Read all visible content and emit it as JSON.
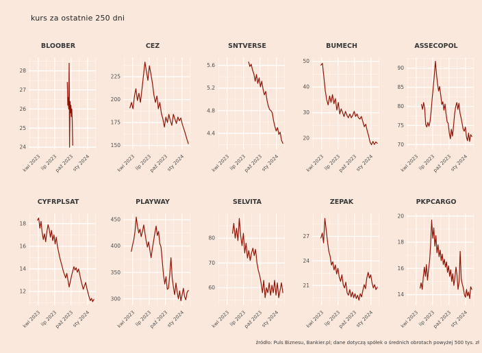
{
  "page": {
    "title": "kurs za ostatnie 250 dni",
    "footer": "źródło: Puls Biznesu, Bankier.pl; dane dotyczą spółek o średnich obrotach powyżej 500 tys. zł",
    "background_color": "#fae8dc",
    "line_color": "#8c1407",
    "grid_color": "#ffffff"
  },
  "x_axis": {
    "ticks": [
      "kwi 2023",
      "lip 2023",
      "paź 2023",
      "sty 2024"
    ],
    "fracs": [
      0.14,
      0.385,
      0.63,
      0.875
    ]
  },
  "chart_data": [
    {
      "type": "line",
      "title": "BLOOBER",
      "y_ticks": [
        28,
        27,
        26,
        25,
        24
      ],
      "ylim": [
        23.9,
        28.7
      ],
      "x_start": 0.575,
      "x_end": 0.655,
      "values": [
        27.4,
        26.2,
        26.6,
        26.0,
        28.4,
        24.0,
        26.4,
        25.8,
        26.2,
        25.6,
        26.0,
        25.4,
        24.1
      ]
    },
    {
      "type": "line",
      "title": "CEZ",
      "y_ticks": [
        225,
        200,
        175,
        150
      ],
      "ylim": [
        146,
        246
      ],
      "x_start": 0.1,
      "x_end": 0.97,
      "values": [
        191,
        197,
        190,
        204,
        212,
        199,
        207,
        197,
        211,
        226,
        241,
        231,
        221,
        237,
        228,
        218,
        205,
        197,
        204,
        190,
        197,
        185,
        179,
        170,
        181,
        175,
        184,
        177,
        172,
        184,
        179,
        174,
        181,
        177,
        180,
        173,
        168,
        163,
        157,
        152
      ]
    },
    {
      "type": "line",
      "title": "SNTVERSE",
      "y_ticks": [
        5.6,
        5.2,
        4.8,
        4.4
      ],
      "ylim": [
        4.12,
        5.74
      ],
      "x_start": 0.46,
      "x_end": 0.97,
      "values": [
        5.66,
        5.58,
        5.62,
        5.52,
        5.45,
        5.32,
        5.44,
        5.28,
        5.38,
        5.22,
        5.32,
        5.18,
        5.08,
        5.14,
        4.98,
        4.88,
        4.82,
        4.8,
        4.76,
        4.62,
        4.52,
        4.44,
        4.5,
        4.38,
        4.42,
        4.28,
        4.22
      ]
    },
    {
      "type": "line",
      "title": "BUMECH",
      "y_ticks": [
        50,
        40,
        30,
        20
      ],
      "ylim": [
        15.8,
        51.5
      ],
      "x_start": 0.13,
      "x_end": 0.97,
      "values": [
        48.5,
        49.2,
        44,
        38.5,
        35,
        33,
        36.5,
        34,
        37,
        33.5,
        35.5,
        31,
        34,
        29.5,
        31.5,
        30,
        28.5,
        30.5,
        29,
        28,
        29.5,
        28,
        29,
        30.5,
        28.5,
        29.5,
        28,
        27.5,
        28.5,
        26.5,
        24.5,
        25.5,
        23,
        21,
        18.5,
        17.5,
        18.8,
        17.6,
        18.6,
        18.1
      ]
    },
    {
      "type": "line",
      "title": "ASSECOPOL",
      "y_ticks": [
        90,
        85,
        80,
        75,
        70
      ],
      "ylim": [
        68.8,
        92.8
      ],
      "x_start": 0.22,
      "x_end": 0.97,
      "values": [
        80.5,
        79.2,
        81,
        79.5,
        75.2,
        74.6,
        75.8,
        74.8,
        76,
        78.5,
        82,
        85,
        88,
        91.8,
        88.5,
        86,
        84,
        85.2,
        83,
        80.5,
        81.2,
        79,
        80.6,
        78,
        76,
        75.5,
        73,
        71.5,
        74,
        72.2,
        75,
        78,
        80,
        81,
        79.2,
        80.8,
        78.2,
        77,
        75.5,
        74,
        73.5,
        74.6,
        72,
        71,
        73,
        70.8,
        72.6,
        72.1
      ]
    },
    {
      "type": "line",
      "title": "CYFRPLSAT",
      "y_ticks": [
        18,
        16,
        14,
        12
      ],
      "ylim": [
        10.8,
        18.9
      ],
      "x_start": 0.13,
      "x_end": 0.97,
      "values": [
        18.3,
        18.5,
        17.6,
        18.2,
        17.2,
        16.6,
        17.1,
        16.4,
        17.3,
        17.9,
        17.5,
        16.8,
        17.4,
        16.5,
        17.0,
        16.2,
        16.8,
        16.0,
        15.5,
        15.0,
        14.6,
        14.2,
        13.8,
        13.5,
        13.2,
        13.6,
        13.0,
        12.4,
        12.9,
        13.4,
        13.8,
        14.2,
        13.9,
        14.1,
        13.7,
        14.0,
        13.5,
        13.0,
        12.6,
        12.2,
        12.5,
        12.8,
        12.3,
        11.9,
        11.5,
        11.2,
        11.4,
        11.1,
        11.3
      ]
    },
    {
      "type": "line",
      "title": "PLAYWAY",
      "y_ticks": [
        450,
        400,
        350,
        300
      ],
      "ylim": [
        288,
        462
      ],
      "x_start": 0.12,
      "x_end": 0.97,
      "values": [
        390,
        402,
        412,
        428,
        455,
        438,
        425,
        432,
        418,
        428,
        440,
        425,
        410,
        398,
        408,
        392,
        378,
        395,
        410,
        425,
        438,
        420,
        428,
        405,
        398,
        372,
        345,
        328,
        342,
        318,
        320,
        345,
        378,
        340,
        322,
        308,
        330,
        312,
        300,
        315,
        296,
        308,
        320,
        304,
        298,
        312,
        316
      ]
    },
    {
      "type": "line",
      "title": "SELVITA",
      "y_ticks": [
        80,
        70,
        60
      ],
      "ylim": [
        53,
        90
      ],
      "x_start": 0.22,
      "x_end": 0.97,
      "values": [
        82,
        86,
        80,
        84,
        79,
        88,
        81,
        77,
        82,
        74,
        78,
        72,
        75,
        71,
        74,
        76,
        73,
        75.5,
        70,
        67,
        65,
        62,
        58,
        63,
        56,
        60,
        58,
        62,
        57,
        61,
        58,
        63,
        57,
        62,
        56,
        59,
        62,
        58
      ]
    },
    {
      "type": "line",
      "title": "ZEPAK",
      "y_ticks": [
        27,
        24,
        21
      ],
      "ylim": [
        18.6,
        29.8
      ],
      "x_start": 0.13,
      "x_end": 0.97,
      "values": [
        26.8,
        27.4,
        26.2,
        29.2,
        27.8,
        26.4,
        25.2,
        24.6,
        23.5,
        23.9,
        22.9,
        23.5,
        22.4,
        23.1,
        22.0,
        21.5,
        22.3,
        21.1,
        20.7,
        21.4,
        20.1,
        19.8,
        20.5,
        19.6,
        20.2,
        19.5,
        20.0,
        19.4,
        19.8,
        19.2,
        20.0,
        19.6,
        20.4,
        21.1,
        20.6,
        21.9,
        22.6,
        21.9,
        22.3,
        21.3,
        20.7,
        21.1,
        20.5,
        20.8
      ]
    },
    {
      "type": "line",
      "title": "PKPCARGO",
      "y_ticks": [
        20,
        18,
        16,
        14
      ],
      "ylim": [
        13.2,
        20.2
      ],
      "x_start": 0.2,
      "x_end": 0.97,
      "values": [
        14.5,
        14.9,
        14.4,
        15.3,
        16.1,
        15.4,
        16.3,
        15.1,
        15.9,
        16.6,
        17.9,
        19.7,
        18.3,
        19.1,
        17.7,
        18.5,
        17.2,
        17.8,
        16.9,
        17.4,
        16.6,
        17.1,
        16.3,
        16.7,
        16.1,
        16.5,
        15.7,
        16.2,
        15.4,
        15.9,
        15.0,
        15.6,
        14.7,
        15.3,
        16.1,
        15.5,
        14.4,
        15.0,
        17.3,
        15.2,
        14.8,
        14.5,
        14.0,
        13.8,
        14.4,
        13.9,
        14.2,
        13.7,
        14.6,
        14.4
      ]
    }
  ]
}
